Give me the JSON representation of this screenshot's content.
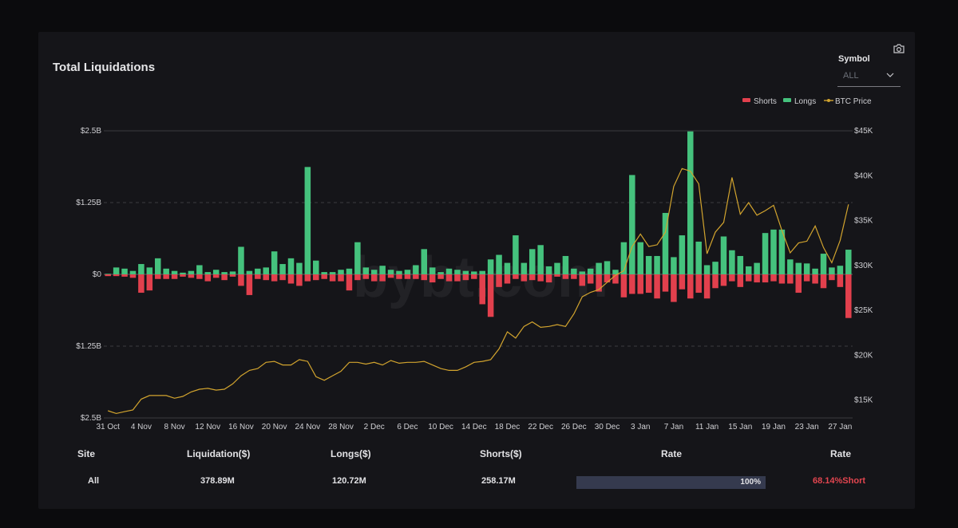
{
  "title": "Total Liquidations",
  "controls": {
    "symbol_label": "Symbol",
    "symbol_value": "ALL",
    "icons": [
      "camera-icon",
      "chevron-down-icon"
    ]
  },
  "watermark": "bybt.com",
  "colors": {
    "shorts": "#e2404d",
    "longs": "#45c27d",
    "price": "#d2a42e"
  },
  "chart_data": {
    "type": "bar",
    "title": "",
    "x_ticks": [
      "31 Oct",
      "4 Nov",
      "8 Nov",
      "12 Nov",
      "16 Nov",
      "20 Nov",
      "24 Nov",
      "28 Nov",
      "2 Dec",
      "6 Dec",
      "10 Dec",
      "14 Dec",
      "18 Dec",
      "22 Dec",
      "26 Dec",
      "30 Dec",
      "3 Jan",
      "7 Jan",
      "11 Jan",
      "15 Jan",
      "19 Jan",
      "23 Jan",
      "27 Jan"
    ],
    "y_left_ticks": [
      "$2.5B",
      "$1.25B",
      "$0",
      "$1.25B",
      "$2.5B"
    ],
    "y_right_ticks": [
      "$45K",
      "$40K",
      "$35K",
      "$30K",
      "$25K",
      "$20K",
      "$15K"
    ],
    "y_left_range": [
      -2.5,
      2.5
    ],
    "y_right_range": [
      13000,
      45000
    ],
    "legend": {
      "position": "top-right",
      "entries": [
        "Shorts",
        "Longs",
        "BTC Price"
      ]
    },
    "dates": [
      "31 Oct",
      "1 Nov",
      "2 Nov",
      "3 Nov",
      "4 Nov",
      "5 Nov",
      "6 Nov",
      "7 Nov",
      "8 Nov",
      "9 Nov",
      "10 Nov",
      "11 Nov",
      "12 Nov",
      "13 Nov",
      "14 Nov",
      "15 Nov",
      "16 Nov",
      "17 Nov",
      "18 Nov",
      "19 Nov",
      "20 Nov",
      "21 Nov",
      "22 Nov",
      "23 Nov",
      "24 Nov",
      "25 Nov",
      "26 Nov",
      "27 Nov",
      "28 Nov",
      "29 Nov",
      "30 Nov",
      "1 Dec",
      "2 Dec",
      "3 Dec",
      "4 Dec",
      "5 Dec",
      "6 Dec",
      "7 Dec",
      "8 Dec",
      "9 Dec",
      "10 Dec",
      "11 Dec",
      "12 Dec",
      "13 Dec",
      "14 Dec",
      "15 Dec",
      "16 Dec",
      "17 Dec",
      "18 Dec",
      "19 Dec",
      "20 Dec",
      "21 Dec",
      "22 Dec",
      "23 Dec",
      "24 Dec",
      "25 Dec",
      "26 Dec",
      "27 Dec",
      "28 Dec",
      "29 Dec",
      "30 Dec",
      "31 Dec",
      "1 Jan",
      "2 Jan",
      "3 Jan",
      "4 Jan",
      "5 Jan",
      "6 Jan",
      "7 Jan",
      "8 Jan",
      "9 Jan",
      "10 Jan",
      "11 Jan",
      "12 Jan",
      "13 Jan",
      "14 Jan",
      "15 Jan",
      "16 Jan",
      "17 Jan",
      "18 Jan",
      "19 Jan",
      "20 Jan",
      "21 Jan",
      "22 Jan",
      "23 Jan",
      "24 Jan",
      "25 Jan",
      "26 Jan",
      "27 Jan",
      "28 Jan"
    ],
    "series": [
      {
        "name": "Longs",
        "unit": "$B",
        "values": [
          0.01,
          0.12,
          0.1,
          0.06,
          0.18,
          0.12,
          0.28,
          0.1,
          0.06,
          0.03,
          0.06,
          0.16,
          0.04,
          0.08,
          0.04,
          0.05,
          0.48,
          0.06,
          0.1,
          0.12,
          0.4,
          0.18,
          0.28,
          0.2,
          1.87,
          0.24,
          0.04,
          0.04,
          0.08,
          0.1,
          0.56,
          0.12,
          0.08,
          0.15,
          0.08,
          0.06,
          0.08,
          0.16,
          0.44,
          0.12,
          0.04,
          0.1,
          0.08,
          0.06,
          0.05,
          0.06,
          0.26,
          0.34,
          0.2,
          0.68,
          0.2,
          0.44,
          0.51,
          0.14,
          0.2,
          0.32,
          0.1,
          0.05,
          0.1,
          0.2,
          0.23,
          0.08,
          0.56,
          1.73,
          0.56,
          0.32,
          0.32,
          1.07,
          0.3,
          0.68,
          2.49,
          0.57,
          0.16,
          0.22,
          0.66,
          0.42,
          0.32,
          0.14,
          0.2,
          0.72,
          0.78,
          0.78,
          0.26,
          0.2,
          0.19,
          0.1,
          0.36,
          0.12,
          0.15,
          0.43
        ]
      },
      {
        "name": "Shorts",
        "unit": "$B",
        "values": [
          -0.03,
          -0.03,
          -0.04,
          -0.06,
          -0.32,
          -0.28,
          -0.08,
          -0.08,
          -0.08,
          -0.04,
          -0.06,
          -0.08,
          -0.12,
          -0.06,
          -0.1,
          -0.04,
          -0.2,
          -0.36,
          -0.08,
          -0.1,
          -0.12,
          -0.1,
          -0.16,
          -0.2,
          -0.12,
          -0.1,
          -0.08,
          -0.12,
          -0.12,
          -0.28,
          -0.1,
          -0.08,
          -0.12,
          -0.12,
          -0.06,
          -0.08,
          -0.08,
          -0.08,
          -0.1,
          -0.14,
          -0.08,
          -0.12,
          -0.12,
          -0.1,
          -0.08,
          -0.52,
          -0.74,
          -0.22,
          -0.16,
          -0.08,
          -0.12,
          -0.1,
          -0.12,
          -0.14,
          -0.04,
          -0.08,
          -0.08,
          -0.2,
          -0.16,
          -0.3,
          -0.14,
          -0.16,
          -0.4,
          -0.34,
          -0.34,
          -0.32,
          -0.42,
          -0.3,
          -0.48,
          -0.26,
          -0.42,
          -0.32,
          -0.42,
          -0.24,
          -0.2,
          -0.12,
          -0.22,
          -0.12,
          -0.14,
          -0.14,
          -0.12,
          -0.16,
          -0.16,
          -0.32,
          -0.12,
          -0.16,
          -0.24,
          -0.1,
          -0.22,
          -0.76
        ]
      },
      {
        "name": "BTC Price",
        "unit": "USD",
        "values": [
          13800,
          13500,
          13700,
          13900,
          15100,
          15500,
          15500,
          15500,
          15200,
          15400,
          15900,
          16200,
          16300,
          16100,
          16200,
          16800,
          17700,
          18300,
          18500,
          19200,
          19300,
          18900,
          18900,
          19500,
          19300,
          17600,
          17200,
          17700,
          18200,
          19200,
          19200,
          19000,
          19200,
          18900,
          19400,
          19100,
          19200,
          19200,
          19300,
          18900,
          18500,
          18300,
          18300,
          18700,
          19200,
          19300,
          19500,
          20700,
          22600,
          21900,
          23200,
          23700,
          23100,
          23200,
          23400,
          23200,
          24600,
          26500,
          27000,
          27300,
          28100,
          28900,
          29400,
          32100,
          33500,
          32100,
          32300,
          33700,
          38800,
          40800,
          40500,
          39100,
          31300,
          33700,
          34800,
          39800,
          35700,
          37000,
          35600,
          36100,
          36700,
          33900,
          31400,
          32500,
          32700,
          34400,
          32000,
          30300,
          32800,
          36800
        ]
      }
    ]
  },
  "summary_table": {
    "headers": [
      "Site",
      "Liquidation($)",
      "Longs($)",
      "Shorts($)",
      "Rate",
      "Rate"
    ],
    "row": {
      "site": "All",
      "liquidation": "378.89M",
      "longs": "120.72M",
      "shorts": "258.17M",
      "rate_percent": 100,
      "rate_label": "100%",
      "rate_short": "68.14%Short"
    }
  }
}
